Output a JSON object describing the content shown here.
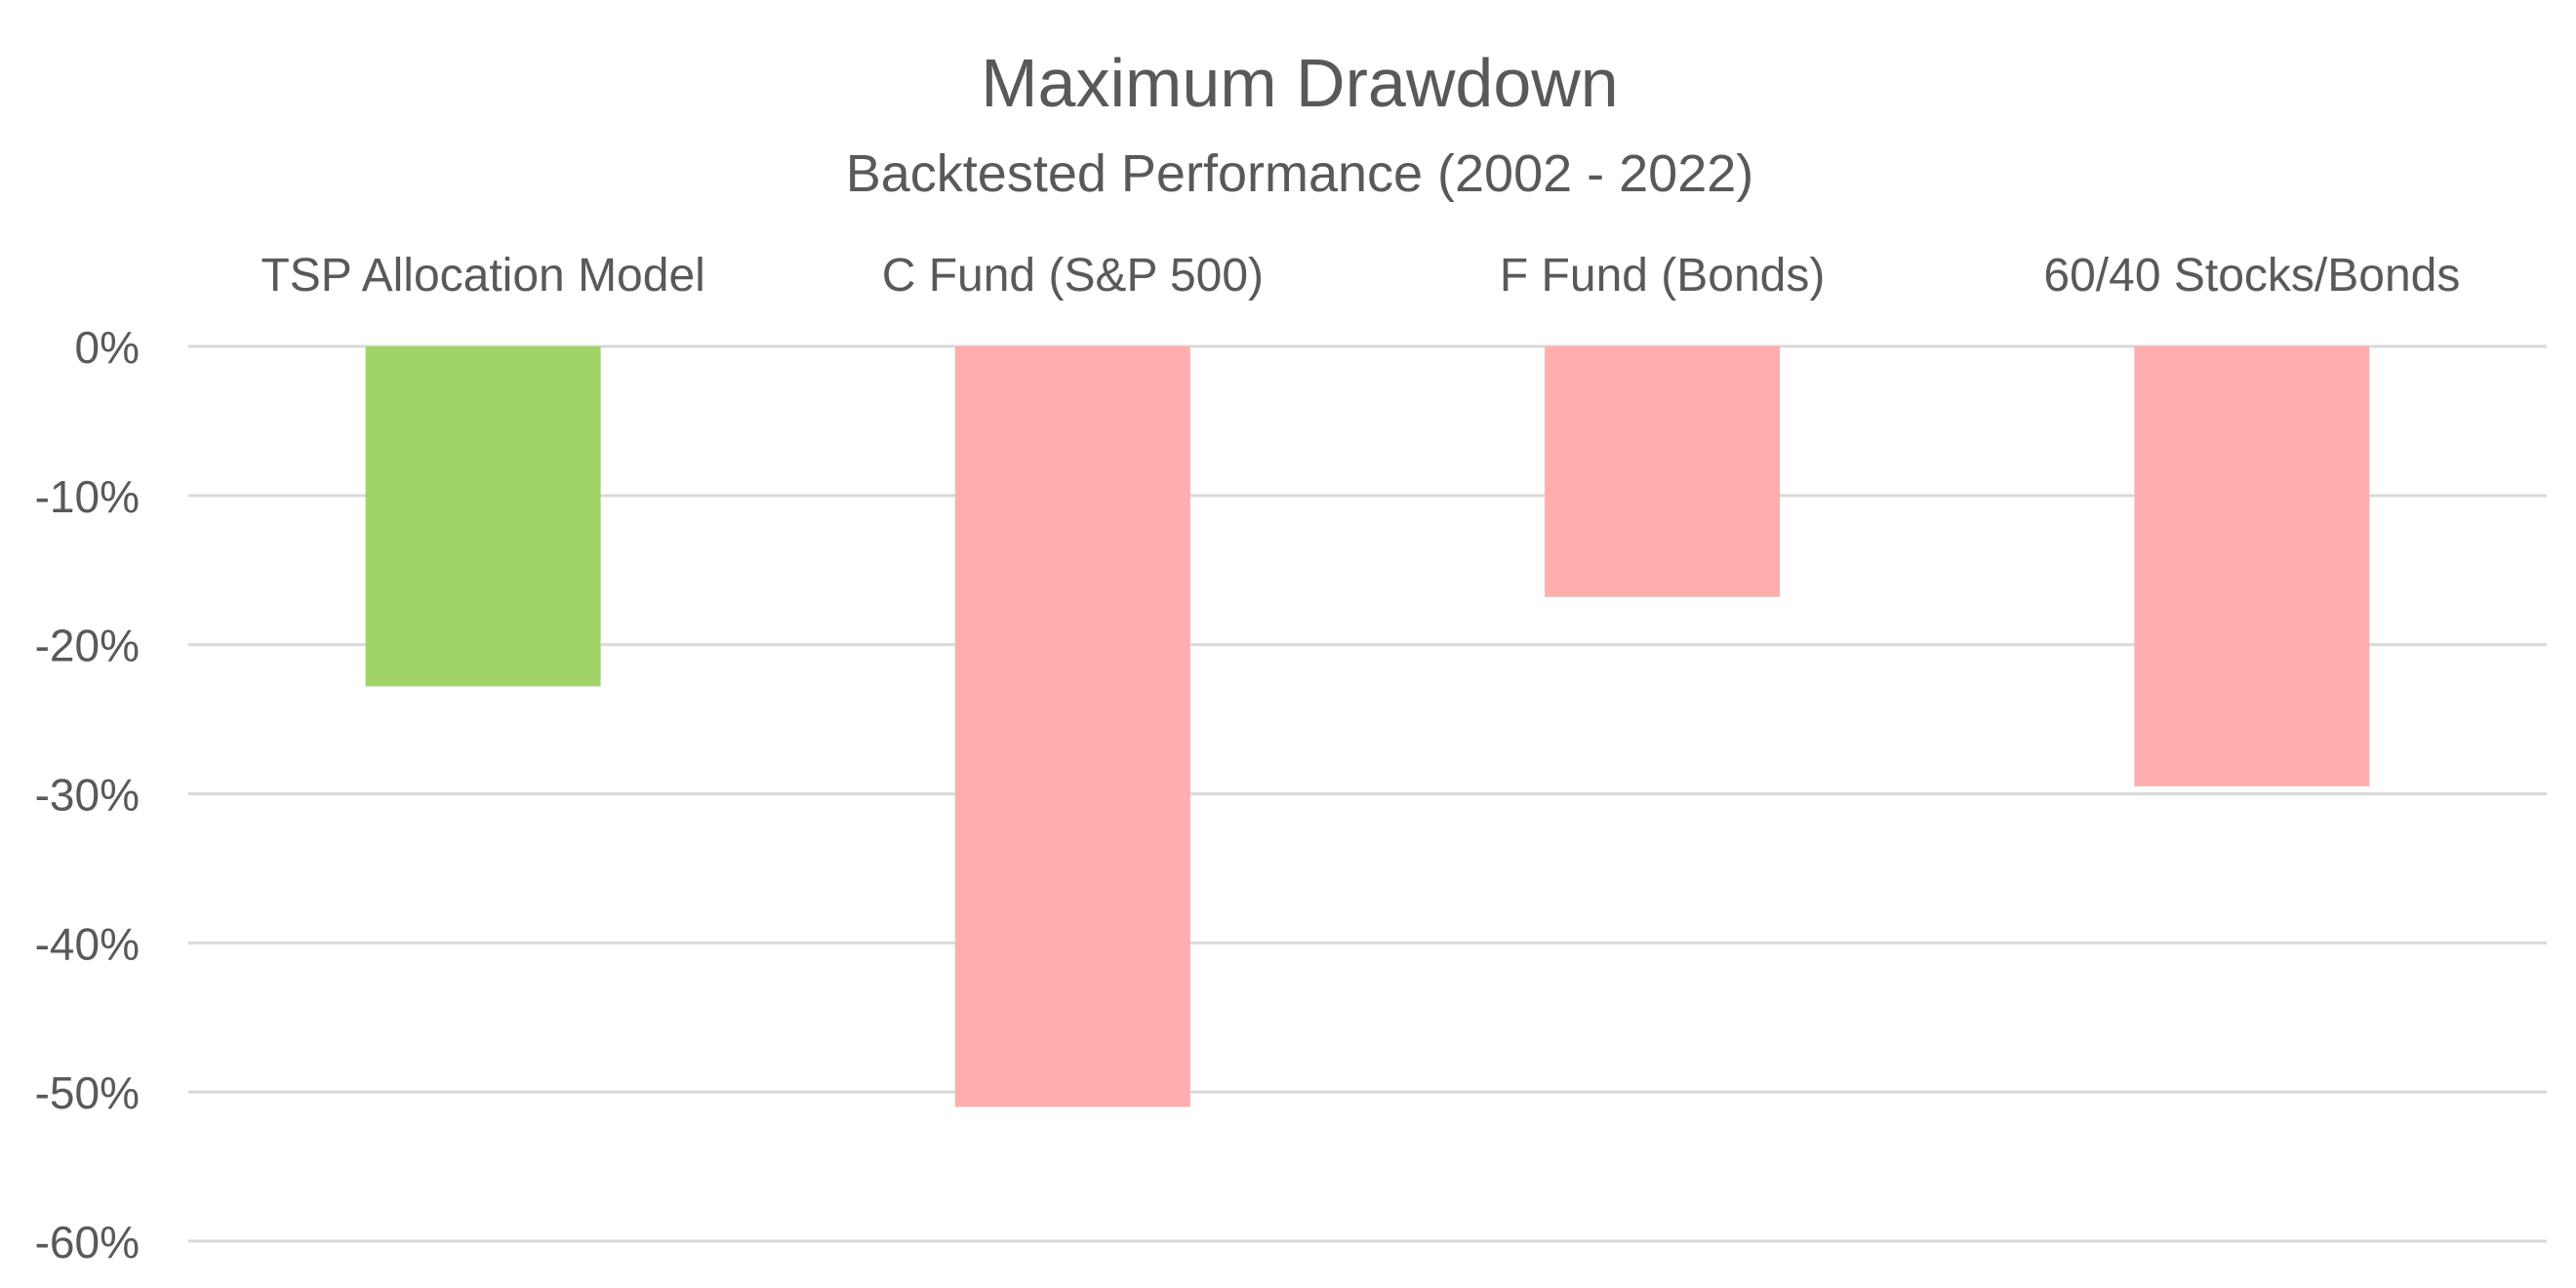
{
  "chart_data": {
    "type": "bar",
    "title": "Maximum Drawdown",
    "subtitle": "Backtested Performance (2002 - 2022)",
    "categories": [
      "TSP Allocation Model",
      "C Fund (S&P 500)",
      "F Fund (Bonds)",
      "60/40 Stocks/Bonds"
    ],
    "values": [
      -22.8,
      -51.0,
      -16.8,
      -29.5
    ],
    "value_unit": "%",
    "ylim": [
      -60,
      0
    ],
    "yticks": [
      0,
      -10,
      -20,
      -30,
      -40,
      -50,
      -60
    ],
    "ytick_labels": [
      "0%",
      "-10%",
      "-20%",
      "-30%",
      "-40%",
      "-50%",
      "-60%"
    ],
    "grid": true,
    "category_labels_position": "top",
    "bar_colors": [
      "#a1d468",
      "#ffadad",
      "#ffadad",
      "#ffadad"
    ],
    "legend": null
  }
}
